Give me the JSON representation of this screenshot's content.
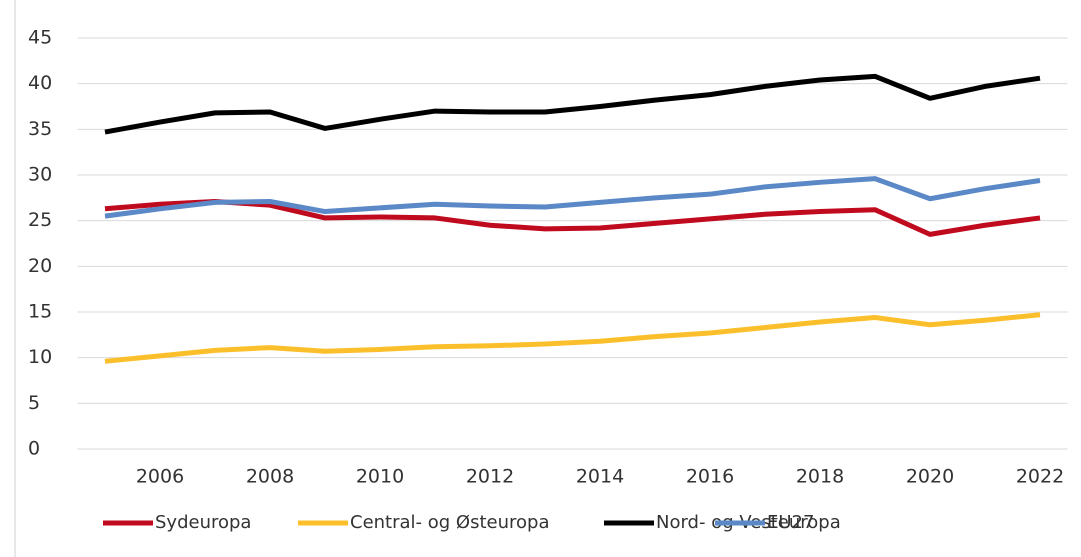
{
  "chart_data": {
    "type": "line",
    "x": [
      2005,
      2006,
      2007,
      2008,
      2009,
      2010,
      2011,
      2012,
      2013,
      2014,
      2015,
      2016,
      2017,
      2018,
      2019,
      2020,
      2021,
      2022
    ],
    "series": [
      {
        "name": "Sydeuropa",
        "color": "#c00a1e",
        "values": [
          26.3,
          26.8,
          27.1,
          26.7,
          25.3,
          25.4,
          25.3,
          24.5,
          24.1,
          24.2,
          24.7,
          25.2,
          25.7,
          26.0,
          26.2,
          23.5,
          24.5,
          25.3
        ]
      },
      {
        "name": "Central- og Østeuropa",
        "color": "#fbbf2c",
        "values": [
          9.6,
          10.2,
          10.8,
          11.1,
          10.7,
          10.9,
          11.2,
          11.3,
          11.5,
          11.8,
          12.3,
          12.7,
          13.3,
          13.9,
          14.4,
          13.6,
          14.1,
          14.7
        ]
      },
      {
        "name": "Nord- og Vesteuropa",
        "color": "#000000",
        "values": [
          34.7,
          35.8,
          36.8,
          36.9,
          35.1,
          36.1,
          37.0,
          36.9,
          36.9,
          37.5,
          38.2,
          38.8,
          39.7,
          40.4,
          40.8,
          38.4,
          39.7,
          40.6
        ]
      },
      {
        "name": "EU27",
        "color": "#5b88c6",
        "values": [
          25.5,
          26.3,
          27.0,
          27.1,
          26.0,
          26.4,
          26.8,
          26.6,
          26.5,
          27.0,
          27.5,
          27.9,
          28.7,
          29.2,
          29.6,
          27.4,
          28.5,
          29.4
        ]
      }
    ],
    "xlim": [
      2004.5,
      2022.5
    ],
    "xticks": [
      2006,
      2008,
      2010,
      2012,
      2014,
      2016,
      2018,
      2020,
      2022
    ],
    "ylim": [
      0,
      45
    ],
    "yticks": [
      0,
      5,
      10,
      15,
      20,
      25,
      30,
      35,
      40,
      45
    ],
    "grid": true,
    "legend": "bottom"
  }
}
